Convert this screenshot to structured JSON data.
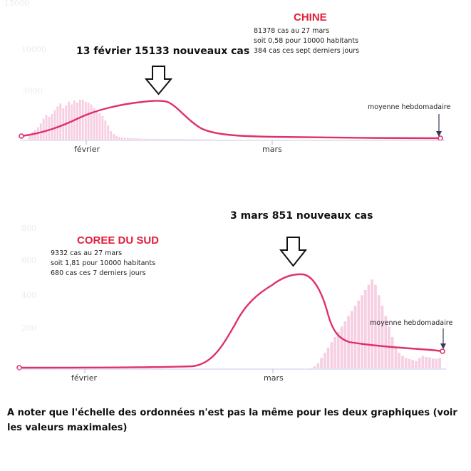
{
  "chart_data": [
    {
      "type": "bar",
      "series": [
        {
          "values": [
            600,
            800,
            1000,
            1300,
            1700,
            2200,
            2600,
            2400,
            2700,
            3100,
            3500,
            3800,
            3300,
            3600,
            4000,
            3700,
            4100,
            3900,
            4200,
            15133,
            4000,
            3900,
            3700,
            3300,
            3000,
            2800,
            2500,
            2000,
            1500,
            900,
            600,
            400,
            300,
            250,
            200,
            200,
            150,
            150,
            130,
            120,
            110,
            100,
            100,
            90,
            90,
            80,
            80,
            80,
            70,
            70,
            70,
            60,
            60,
            60,
            50,
            50,
            50,
            50,
            50,
            50,
            50,
            45,
            45,
            45,
            45,
            45
          ]
        },
        {
          "type": "line",
          "name": "moyenne hebdomadaire",
          "values": [
            10,
            100,
            400,
            800,
            1300,
            1800,
            2200,
            2600,
            2900,
            3300,
            3500,
            3750,
            3850,
            4000,
            4050,
            3600,
            2600,
            1500,
            900,
            600,
            400,
            300,
            250,
            200,
            180,
            160,
            140,
            130,
            120,
            110,
            100,
            95,
            90,
            85,
            80,
            75,
            70,
            65,
            60,
            55,
            50,
            50
          ]
        }
      ],
      "x_labels": [
        "février",
        "mars"
      ],
      "annotations": {
        "peak": "13 février  15133 nouveaux cas",
        "title": "CHINE",
        "info": [
          "81378 cas au 27 mars",
          "soit 0,58 pour 10000 habitants",
          "384 cas ces sept derniers jours"
        ],
        "avg_label": "moyenne hebdomadaire"
      },
      "ghost_ticks": [
        "15000",
        "10000",
        "5000"
      ]
    },
    {
      "type": "bar",
      "series": [
        {
          "values": [
            0,
            0,
            0,
            0,
            0,
            0,
            0,
            0,
            0,
            0,
            0,
            0,
            0,
            0,
            0,
            0,
            0,
            0,
            0,
            0,
            0,
            0,
            0,
            0,
            0,
            0,
            0,
            0,
            0,
            0,
            0,
            0,
            0,
            0,
            0,
            0,
            0,
            1,
            2,
            5,
            20,
            50,
            100,
            150,
            200,
            250,
            300,
            350,
            400,
            450,
            500,
            550,
            600,
            650,
            700,
            750,
            800,
            851,
            800,
            700,
            600,
            500,
            400,
            300,
            200,
            150,
            120,
            100,
            90,
            80,
            70,
            100,
            120,
            110,
            105,
            95,
            90,
            100
          ]
        },
        {
          "type": "line",
          "name": "moyenne hebdomadaire",
          "values": [
            0,
            0,
            0,
            0,
            0,
            0,
            0,
            0,
            0,
            0,
            0,
            0,
            0,
            0,
            0,
            0,
            0,
            0,
            0,
            0,
            0,
            0,
            0,
            2,
            10,
            40,
            100,
            200,
            300,
            380,
            440,
            480,
            500,
            510,
            490,
            440,
            360,
            260,
            180,
            130,
            110,
            100,
            95,
            90,
            85,
            80,
            75,
            72,
            70
          ]
        }
      ],
      "x_labels": [
        "février",
        "mars"
      ],
      "annotations": {
        "peak": "3 mars  851 nouveaux cas",
        "title": "COREE DU SUD",
        "info": [
          "9332 cas au 27 mars",
          "soit 1,81 pour 10000 habitants",
          "680 cas ces 7 derniers jours"
        ],
        "avg_label": "moyenne hebdomadaire"
      },
      "ghost_ticks": [
        "800",
        "600",
        "400",
        "200"
      ]
    }
  ],
  "footnote": "A noter que l'échelle des ordonnées n'est pas la même pour les deux graphiques (voir les valeurs maximales)"
}
